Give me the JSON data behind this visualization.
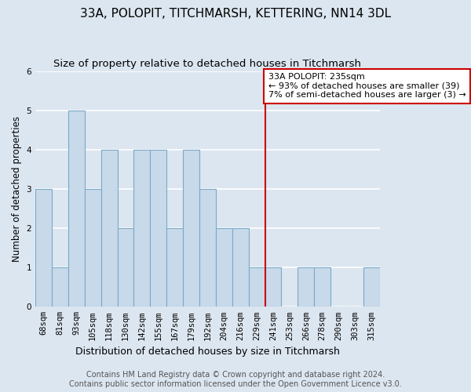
{
  "title": "33A, POLOPIT, TITCHMARSH, KETTERING, NN14 3DL",
  "subtitle": "Size of property relative to detached houses in Titchmarsh",
  "xlabel": "Distribution of detached houses by size in Titchmarsh",
  "ylabel": "Number of detached properties",
  "categories": [
    "68sqm",
    "81sqm",
    "93sqm",
    "105sqm",
    "118sqm",
    "130sqm",
    "142sqm",
    "155sqm",
    "167sqm",
    "179sqm",
    "192sqm",
    "204sqm",
    "216sqm",
    "229sqm",
    "241sqm",
    "253sqm",
    "266sqm",
    "278sqm",
    "290sqm",
    "303sqm",
    "315sqm"
  ],
  "values": [
    3,
    1,
    5,
    3,
    4,
    2,
    4,
    4,
    2,
    4,
    3,
    2,
    2,
    1,
    1,
    0,
    1,
    1,
    0,
    0,
    1
  ],
  "bar_color": "#c8d9ea",
  "bar_edge_color": "#7aaac8",
  "vline_x_index": 13.5,
  "vline_color": "#cc0000",
  "annotation_text": "33A POLOPIT: 235sqm\n← 93% of detached houses are smaller (39)\n7% of semi-detached houses are larger (3) →",
  "annotation_box_facecolor": "#ffffff",
  "annotation_box_edgecolor": "#cc0000",
  "ylim": [
    0,
    6
  ],
  "yticks": [
    0,
    1,
    2,
    3,
    4,
    5,
    6
  ],
  "footer": "Contains HM Land Registry data © Crown copyright and database right 2024.\nContains public sector information licensed under the Open Government Licence v3.0.",
  "bg_color": "#dce6f0",
  "grid_color": "#ffffff",
  "title_fontsize": 11,
  "subtitle_fontsize": 9.5,
  "ylabel_fontsize": 8.5,
  "xlabel_fontsize": 9,
  "tick_fontsize": 7.5,
  "annotation_fontsize": 8,
  "footer_fontsize": 7
}
